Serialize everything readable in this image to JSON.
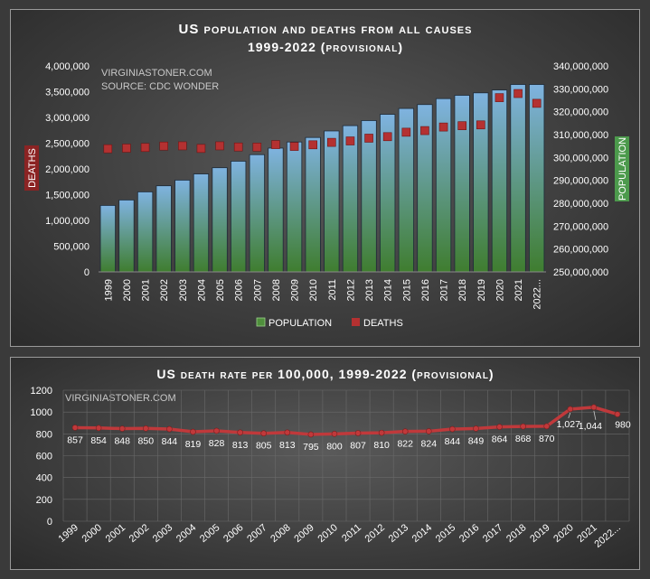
{
  "colors": {
    "population_top": "#7fb3e0",
    "population_bottom": "#3f7d2f",
    "deaths": "#b43131",
    "death_rate_line": "#c0393b",
    "deaths_axis_label_bg": "#8b2323",
    "population_axis_label_bg": "#4c9a4c"
  },
  "chart_data": [
    {
      "type": "bar",
      "title": "US population and deaths from all causes",
      "subtitle": "1999-2022  (provisional)",
      "watermark_lines": [
        "VIRGINIASTONER.COM",
        "SOURCE: CDC WONDER"
      ],
      "categories": [
        "1999",
        "2000",
        "2001",
        "2002",
        "2003",
        "2004",
        "2005",
        "2006",
        "2007",
        "2008",
        "2009",
        "2010",
        "2011",
        "2012",
        "2013",
        "2014",
        "2015",
        "2016",
        "2017",
        "2018",
        "2019",
        "2020",
        "2021",
        "2022..."
      ],
      "series": [
        {
          "name": "POPULATION",
          "type": "bar",
          "axis": "right",
          "values": [
            279040168,
            281421906,
            284968955,
            287625193,
            290107933,
            292805643,
            295516599,
            298379912,
            301231207,
            304093966,
            306771529,
            308745538,
            311591917,
            313914040,
            316128839,
            318857056,
            321418820,
            323127513,
            325719178,
            327167434,
            328239523,
            329484123,
            331893745,
            331893745
          ]
        },
        {
          "name": "DEATHS",
          "type": "scatter",
          "axis": "left",
          "values": [
            2391399,
            2403351,
            2416425,
            2443387,
            2448288,
            2397615,
            2448017,
            2426264,
            2423712,
            2471984,
            2437163,
            2468435,
            2515458,
            2543279,
            2596993,
            2626418,
            2712630,
            2744248,
            2813503,
            2839205,
            2854838,
            3383729,
            3464231,
            3273705
          ]
        }
      ],
      "y_left": {
        "label": "DEATHS",
        "ylim": [
          0,
          4000000
        ],
        "ticks": [
          "0",
          "500,000",
          "1,000,000",
          "1,500,000",
          "2,000,000",
          "2,500,000",
          "3,000,000",
          "3,500,000",
          "4,000,000"
        ]
      },
      "y_right": {
        "label": "POPULATION",
        "ylim": [
          250000000,
          340000000
        ],
        "ticks": [
          "250,000,000",
          "260,000,000",
          "270,000,000",
          "280,000,000",
          "290,000,000",
          "300,000,000",
          "310,000,000",
          "320,000,000",
          "330,000,000",
          "340,000,000"
        ]
      },
      "legend": [
        "POPULATION",
        "DEATHS"
      ],
      "legend_placement": "bottom"
    },
    {
      "type": "line",
      "title": "US death rate per 100,000,  1999-2022  (provisional)",
      "watermark_lines": [
        "VIRGINIASTONER.COM"
      ],
      "categories": [
        "1999",
        "2000",
        "2001",
        "2002",
        "2003",
        "2004",
        "2005",
        "2006",
        "2007",
        "2008",
        "2009",
        "2010",
        "2011",
        "2012",
        "2013",
        "2014",
        "2015",
        "2016",
        "2017",
        "2018",
        "2019",
        "2020",
        "2021",
        "2022..."
      ],
      "values": [
        857,
        854,
        848,
        850,
        844,
        819,
        828,
        813,
        805,
        813,
        795,
        800,
        807,
        810,
        822,
        824,
        844,
        849,
        864,
        868,
        870,
        1027,
        1044,
        980
      ],
      "data_labels": [
        "857",
        "854",
        "848",
        "850",
        "844",
        "819",
        "828",
        "813",
        "805",
        "813",
        "795",
        "800",
        "807",
        "810",
        "822",
        "824",
        "844",
        "849",
        "864",
        "868",
        "870",
        "1,027",
        "1,044",
        "980"
      ],
      "ylim": [
        0,
        1200
      ],
      "yticks": [
        "0",
        "200",
        "400",
        "600",
        "800",
        "1000",
        "1200"
      ],
      "grid": true
    }
  ]
}
